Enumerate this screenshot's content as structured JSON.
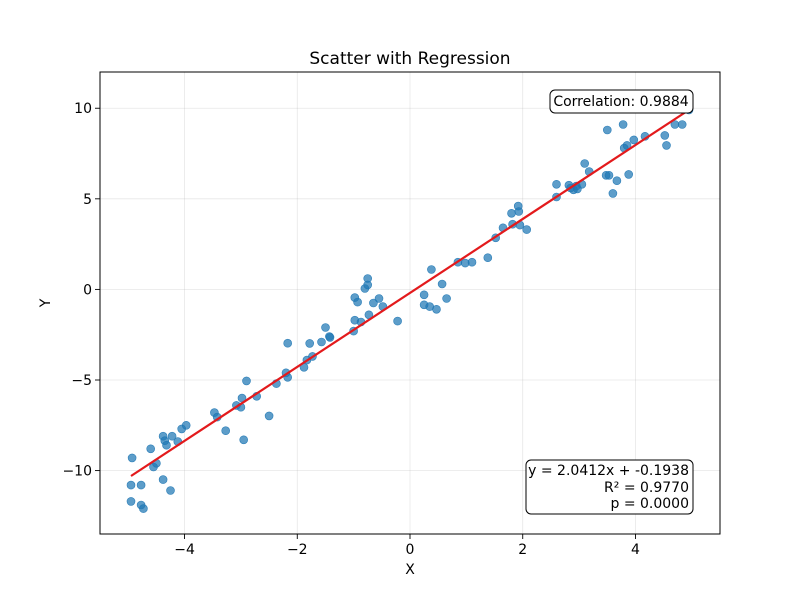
{
  "chart_data": {
    "type": "scatter",
    "title": "Scatter with Regression",
    "xlabel": "X",
    "ylabel": "Y",
    "xlim": [
      -5.5,
      5.5
    ],
    "ylim": [
      -13.5,
      12.0
    ],
    "xticks": [
      -4,
      -2,
      0,
      2,
      4
    ],
    "yticks": [
      -10,
      -5,
      0,
      5,
      10
    ],
    "xtick_labels": [
      "−4",
      "−2",
      "0",
      "2",
      "4"
    ],
    "ytick_labels": [
      "−10",
      "−5",
      "0",
      "5",
      "10"
    ],
    "grid": true,
    "point_color": "#1f77b4",
    "line_color": "#e31a1c",
    "regression": {
      "slope": 2.0412,
      "intercept": -0.1938,
      "x_range": [
        -4.95,
        4.95
      ]
    },
    "annotation_top": "Correlation: 0.9884",
    "annotation_bottom": [
      "y = 2.0412x + -0.1938",
      "R² = 0.9770",
      "p = 0.0000"
    ],
    "points": [
      [
        -4.93,
        -9.3
      ],
      [
        -4.95,
        -10.8
      ],
      [
        -4.95,
        -11.7
      ],
      [
        -4.77,
        -10.8
      ],
      [
        -4.77,
        -11.9
      ],
      [
        -4.73,
        -12.1
      ],
      [
        -4.6,
        -8.8
      ],
      [
        -4.55,
        -9.8
      ],
      [
        -4.5,
        -9.6
      ],
      [
        -4.38,
        -8.1
      ],
      [
        -4.35,
        -8.35
      ],
      [
        -4.32,
        -8.6
      ],
      [
        -4.38,
        -10.5
      ],
      [
        -4.25,
        -11.1
      ],
      [
        -4.22,
        -8.1
      ],
      [
        -4.12,
        -8.4
      ],
      [
        -4.05,
        -7.7
      ],
      [
        -3.97,
        -7.5
      ],
      [
        -3.47,
        -6.8
      ],
      [
        -3.42,
        -7.05
      ],
      [
        -3.27,
        -7.8
      ],
      [
        -3.08,
        -6.4
      ],
      [
        -3.0,
        -6.5
      ],
      [
        -2.98,
        -6.0
      ],
      [
        -2.95,
        -8.3
      ],
      [
        -2.9,
        -5.05
      ],
      [
        -2.72,
        -5.9
      ],
      [
        -2.5,
        -6.98
      ],
      [
        -2.37,
        -5.2
      ],
      [
        -2.2,
        -4.6
      ],
      [
        -2.17,
        -4.85
      ],
      [
        -2.17,
        -2.97
      ],
      [
        -1.88,
        -4.3
      ],
      [
        -1.83,
        -3.9
      ],
      [
        -1.78,
        -2.98
      ],
      [
        -1.73,
        -3.7
      ],
      [
        -1.57,
        -2.9
      ],
      [
        -1.5,
        -2.1
      ],
      [
        -1.43,
        -2.6
      ],
      [
        -1.42,
        -2.65
      ],
      [
        -1.0,
        -2.3
      ],
      [
        -0.98,
        -1.7
      ],
      [
        -0.98,
        -0.45
      ],
      [
        -0.93,
        -0.7
      ],
      [
        -0.87,
        -1.8
      ],
      [
        -0.8,
        0.05
      ],
      [
        -0.75,
        0.25
      ],
      [
        -0.75,
        0.6
      ],
      [
        -0.73,
        -1.4
      ],
      [
        -0.65,
        -0.75
      ],
      [
        -0.55,
        -0.5
      ],
      [
        -0.48,
        -0.95
      ],
      [
        -0.22,
        -1.75
      ],
      [
        0.25,
        -0.3
      ],
      [
        0.25,
        -0.85
      ],
      [
        0.35,
        -0.95
      ],
      [
        0.38,
        1.1
      ],
      [
        0.47,
        -1.1
      ],
      [
        0.57,
        0.3
      ],
      [
        0.65,
        -0.5
      ],
      [
        0.85,
        1.5
      ],
      [
        0.98,
        1.45
      ],
      [
        1.1,
        1.5
      ],
      [
        1.38,
        1.75
      ],
      [
        1.52,
        2.85
      ],
      [
        1.65,
        3.4
      ],
      [
        1.8,
        4.2
      ],
      [
        1.82,
        3.6
      ],
      [
        1.92,
        4.6
      ],
      [
        1.93,
        4.3
      ],
      [
        1.95,
        3.55
      ],
      [
        2.07,
        3.3
      ],
      [
        2.6,
        5.1
      ],
      [
        2.6,
        5.8
      ],
      [
        2.82,
        5.75
      ],
      [
        2.85,
        5.6
      ],
      [
        2.9,
        5.5
      ],
      [
        2.95,
        5.7
      ],
      [
        2.97,
        5.55
      ],
      [
        3.05,
        5.8
      ],
      [
        3.1,
        6.95
      ],
      [
        3.18,
        6.5
      ],
      [
        3.48,
        6.3
      ],
      [
        3.5,
        8.8
      ],
      [
        3.53,
        6.3
      ],
      [
        3.6,
        5.3
      ],
      [
        3.67,
        6.0
      ],
      [
        3.78,
        9.1
      ],
      [
        3.8,
        7.8
      ],
      [
        3.85,
        7.95
      ],
      [
        3.88,
        6.35
      ],
      [
        3.97,
        8.25
      ],
      [
        4.17,
        8.45
      ],
      [
        4.52,
        8.5
      ],
      [
        4.55,
        7.95
      ],
      [
        4.7,
        9.1
      ],
      [
        4.83,
        9.1
      ],
      [
        4.88,
        10.75
      ],
      [
        4.92,
        10.55
      ],
      [
        4.95,
        9.9
      ]
    ]
  }
}
